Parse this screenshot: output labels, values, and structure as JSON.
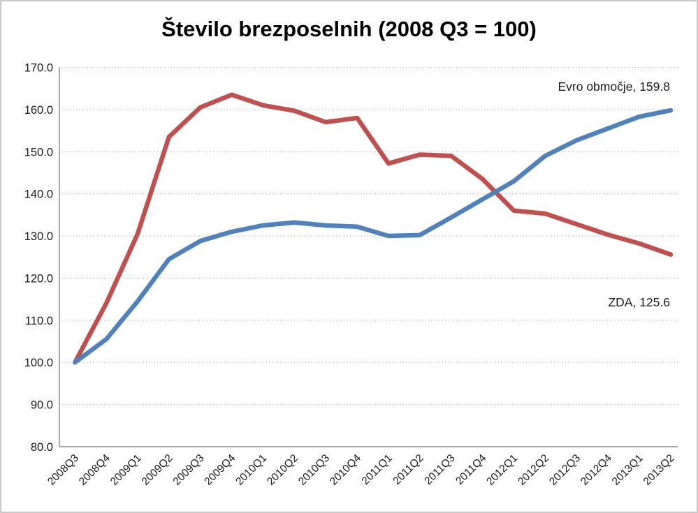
{
  "window": {
    "background": "#ffffff",
    "border_color": "#c9c9c9"
  },
  "chart_data": {
    "type": "line",
    "title": "Število brezposelnih (2008 Q3 = 100)",
    "categories": [
      "2008Q3",
      "2008Q4",
      "2009Q1",
      "2009Q2",
      "2009Q3",
      "2009Q4",
      "2010Q1",
      "2010Q2",
      "2010Q3",
      "2010Q4",
      "2011Q1",
      "2011Q2",
      "2011Q3",
      "2011Q4",
      "2012Q1",
      "2012Q2",
      "2012Q3",
      "2012Q4",
      "2013Q1",
      "2013Q2"
    ],
    "series": [
      {
        "name": "Evro območje",
        "color": "#4F81BD",
        "values": [
          100.0,
          105.5,
          114.5,
          124.5,
          128.8,
          131.0,
          132.5,
          133.2,
          132.5,
          132.2,
          130.0,
          130.2,
          134.4,
          138.7,
          143.0,
          149.0,
          152.7,
          155.5,
          158.3,
          159.8
        ]
      },
      {
        "name": "ZDA",
        "color": "#C0504D",
        "values": [
          100.0,
          114.0,
          130.5,
          153.5,
          160.5,
          163.5,
          161.0,
          159.7,
          157.0,
          158.0,
          147.2,
          149.3,
          149.0,
          143.5,
          136.0,
          135.3,
          132.8,
          130.3,
          128.2,
          125.6
        ]
      }
    ],
    "ylim": [
      80,
      170
    ],
    "ytick_step": 10,
    "ytick_labels": [
      "80.0",
      "90.0",
      "100.0",
      "110.0",
      "120.0",
      "130.0",
      "140.0",
      "150.0",
      "160.0",
      "170.0"
    ],
    "grid": "horizontal dotted",
    "gridline_color": "#a6a6a6",
    "axis_line_color": "#8c8c8c",
    "tick_label_color": "#1a1a1a",
    "legend_position": "none",
    "annotations": [
      {
        "text": "Evro območje, 159.8",
        "series": "Evro območje"
      },
      {
        "text": "ZDA, 125.6",
        "series": "ZDA"
      }
    ]
  }
}
